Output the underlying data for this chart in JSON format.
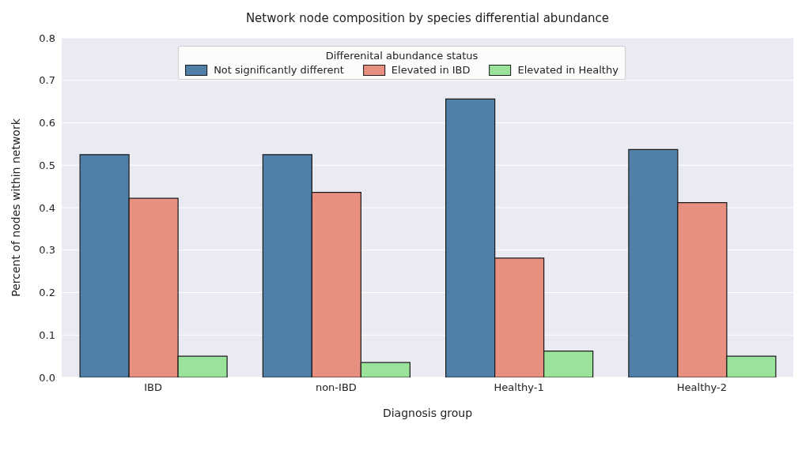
{
  "chart_data": {
    "type": "bar",
    "title": "Network node composition by species differential abundance",
    "xlabel": "Diagnosis group",
    "ylabel": "Percent of nodes within network",
    "legend_title": "Differenital abundance status",
    "categories": [
      "IBD",
      "non-IBD",
      "Healthy-1",
      "Healthy-2"
    ],
    "series": [
      {
        "name": "Not significantly different",
        "color": "#5080a8",
        "values": [
          0.525,
          0.525,
          0.656,
          0.537
        ]
      },
      {
        "name": "Elevated in IBD",
        "color": "#e8907f",
        "values": [
          0.422,
          0.436,
          0.281,
          0.412
        ]
      },
      {
        "name": "Elevated in Healthy",
        "color": "#9be39a",
        "values": [
          0.05,
          0.035,
          0.062,
          0.05
        ]
      }
    ],
    "ylim": [
      0,
      0.8
    ],
    "yticks": [
      {
        "value": 0,
        "label": "0.0"
      },
      0.1,
      0.2,
      0.3,
      0.4,
      0.5,
      0.6,
      0.7,
      0.8
    ],
    "grid": "y",
    "legend": "top"
  }
}
